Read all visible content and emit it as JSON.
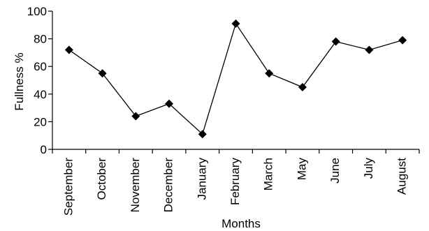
{
  "chart_data": {
    "type": "line",
    "title": "",
    "xlabel": "Months",
    "ylabel": "Fullness %",
    "categories": [
      "September",
      "October",
      "November",
      "December",
      "January",
      "February",
      "March",
      "May",
      "June",
      "July",
      "August"
    ],
    "series": [
      {
        "values": [
          72,
          55,
          24,
          33,
          11,
          91,
          55,
          45,
          78,
          72,
          79
        ]
      }
    ],
    "ylim": [
      0,
      100
    ],
    "yticks": [
      "0",
      "20",
      "40",
      "60",
      "80",
      "100"
    ],
    "grid": false,
    "marker": "diamond",
    "colors": {
      "line": "#000000",
      "marker": "#000000"
    }
  }
}
